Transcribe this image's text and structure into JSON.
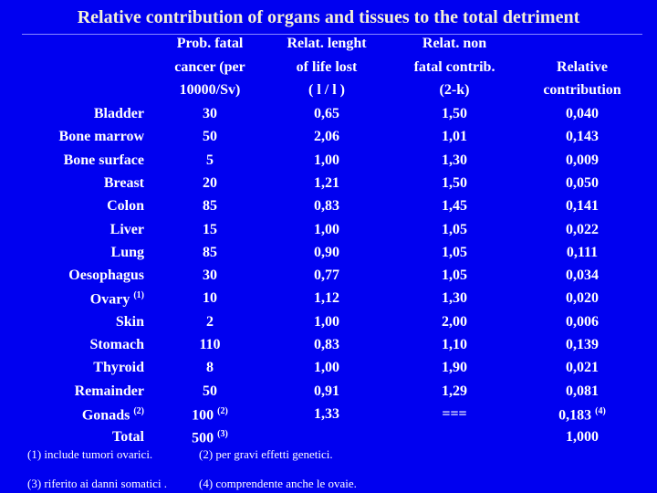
{
  "title": "Relative contribution of organs and tissues to the total detriment",
  "table": {
    "headers": [
      [
        "Prob. fatal",
        "cancer (per",
        "10000/Sv)"
      ],
      [
        "Relat. lenght",
        "of life lost",
        "( l / l )"
      ],
      [
        "Relat. non",
        "fatal contrib.",
        "(2-k)"
      ],
      [
        "Relative",
        "contribution"
      ]
    ],
    "rows": [
      [
        "Bladder",
        "30",
        "0,65",
        "1,50",
        "0,040"
      ],
      [
        "Bone marrow",
        "50",
        "2,06",
        "1,01",
        "0,143"
      ],
      [
        "Bone surface",
        "5",
        "1,00",
        "1,30",
        "0,009"
      ],
      [
        "Breast",
        "20",
        "1,21",
        "1,50",
        "0,050"
      ],
      [
        "Colon",
        "85",
        "0,83",
        "1,45",
        "0,141"
      ],
      [
        "Liver",
        "15",
        "1,00",
        "1,05",
        "0,022"
      ],
      [
        "Lung",
        "85",
        "0,90",
        "1,05",
        "0,111"
      ],
      [
        "Oesophagus",
        "30",
        "0,77",
        "1,05",
        "0,034"
      ],
      [
        {
          "text": "Ovary",
          "note": "(1)"
        },
        "10",
        "1,12",
        "1,30",
        "0,020"
      ],
      [
        "Skin",
        "2",
        "1,00",
        "2,00",
        "0,006"
      ],
      [
        "Stomach",
        "110",
        "0,83",
        "1,10",
        "0,139"
      ],
      [
        "Thyroid",
        "8",
        "1,00",
        "1,90",
        "0,021"
      ],
      [
        "Remainder",
        "50",
        "0,91",
        "1,29",
        "0,081"
      ],
      [
        {
          "text": "Gonads",
          "note": "(2)"
        },
        {
          "text": "100",
          "note": "(2)"
        },
        "1,33",
        "===",
        {
          "text": "0,183",
          "note": "(4)"
        }
      ],
      [
        "Total",
        {
          "text": "500",
          "note": "(3)"
        },
        null,
        null,
        "1,000"
      ]
    ]
  },
  "footnotes": [
    "(1) include tumori ovarici.",
    "(2) per gravi effetti genetici.",
    "(3) riferito ai danni somatici .",
    "(4) comprendente anche le ovaie."
  ]
}
